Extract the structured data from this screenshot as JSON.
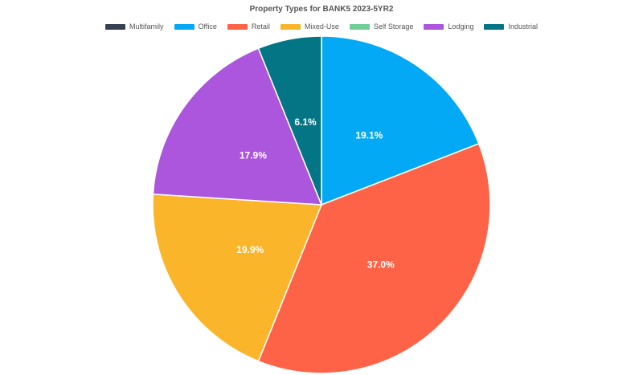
{
  "chart_data": {
    "type": "pie",
    "title": "Property Types for BANK5 2023-5YR2",
    "legend_position": "top",
    "categories": [
      "Multifamily",
      "Office",
      "Retail",
      "Mixed-Use",
      "Self Storage",
      "Lodging",
      "Industrial"
    ],
    "values": [
      0.0,
      19.1,
      37.0,
      19.9,
      0.0,
      17.9,
      6.1
    ],
    "labels": [
      "",
      "19.1%",
      "37.0%",
      "19.9%",
      "",
      "17.9%",
      "6.1%"
    ],
    "colors": [
      "#374151",
      "#03a9f4",
      "#ff6347",
      "#fbb52a",
      "#6fcf97",
      "#ab56dc",
      "#037584"
    ]
  }
}
